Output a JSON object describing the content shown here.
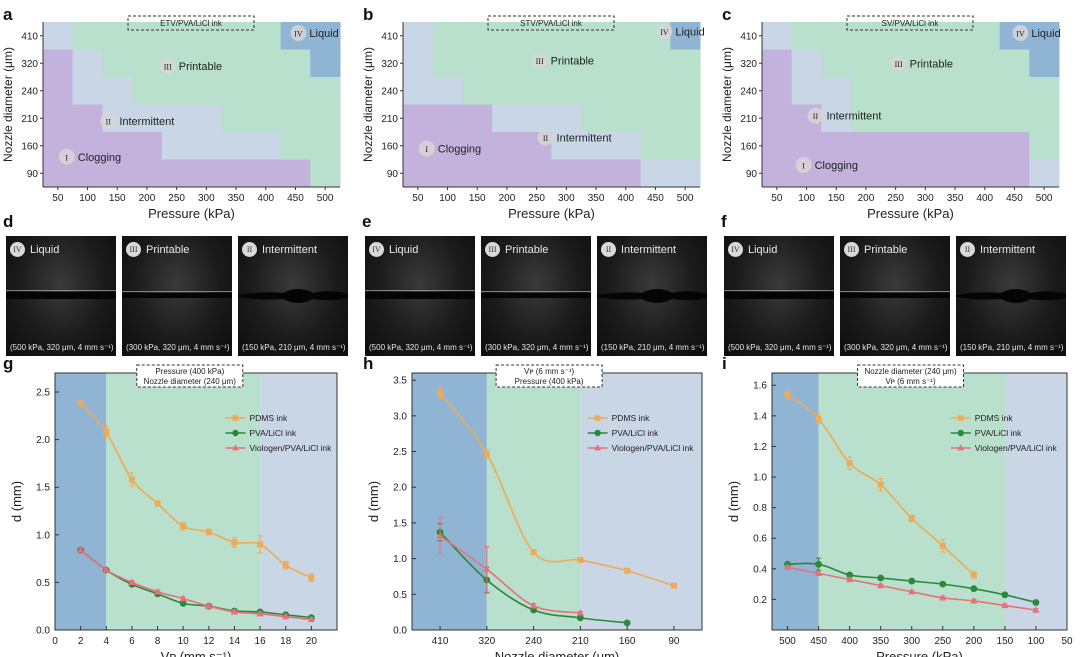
{
  "panel_letters": [
    "a",
    "b",
    "c",
    "d",
    "e",
    "f",
    "g",
    "h",
    "i"
  ],
  "region_labels": [
    "Liquid",
    "Printable",
    "Intermittent",
    "Clogging"
  ],
  "region_numerals": [
    "IV",
    "III",
    "II",
    "I"
  ],
  "photo_panels": [
    {
      "letter": "d",
      "items": [
        {
          "roman": "IV",
          "label": "Liquid",
          "cond": "(500 kPa, 320 μm, 4 mm s⁻¹)"
        },
        {
          "roman": "III",
          "label": "Printable",
          "cond": "(300 kPa, 320 μm, 4 mm s⁻¹)"
        },
        {
          "roman": "II",
          "label": "Intermittent",
          "cond": "(150 kPa, 210 μm, 4 mm s⁻¹)"
        }
      ]
    },
    {
      "letter": "e",
      "items": [
        {
          "roman": "IV",
          "label": "Liquid",
          "cond": "(500 kPa, 320 μm, 4 mm s⁻¹)"
        },
        {
          "roman": "III",
          "label": "Printable",
          "cond": "(300 kPa, 320 μm, 4 mm s⁻¹)"
        },
        {
          "roman": "II",
          "label": "Intermittent",
          "cond": "(150 kPa, 210 μm, 4 mm s⁻¹)"
        }
      ]
    },
    {
      "letter": "f",
      "items": [
        {
          "roman": "IV",
          "label": "Liquid",
          "cond": "(500 kPa, 320 μm, 4 mm s⁻¹)"
        },
        {
          "roman": "III",
          "label": "Printable",
          "cond": "(300 kPa, 320 μm, 4 mm s⁻¹)"
        },
        {
          "roman": "II",
          "label": "Intermittent",
          "cond": "(150 kPa, 210 μm, 4 mm s⁻¹)"
        }
      ]
    }
  ],
  "colors": {
    "liquid": "#90b4d4",
    "printable": "#b8e0cc",
    "intermittent": "#c9d6e6",
    "clogging": "#c3b3dc",
    "pdms": "#f0a955",
    "pva": "#2a8a3a",
    "viologen": "#e8707a"
  },
  "chart_data": [
    {
      "type": "heatmap",
      "panel": "a",
      "title": "ETV/PVA/LiCl ink",
      "xlabel": "Pressure (kPa)",
      "ylabel": "Nozzle diameter (μm)",
      "x": [
        50,
        100,
        150,
        200,
        250,
        300,
        350,
        400,
        450,
        500
      ],
      "y": [
        410,
        320,
        240,
        210,
        160,
        90
      ],
      "legend": [
        "Liquid",
        "Printable",
        "Intermittent",
        "Clogging"
      ],
      "grid": [
        [
          "Intermittent",
          "Printable",
          "Printable",
          "Printable",
          "Printable",
          "Printable",
          "Printable",
          "Printable",
          "Liquid",
          "Liquid"
        ],
        [
          "Clogging",
          "Intermittent",
          "Printable",
          "Printable",
          "Printable",
          "Printable",
          "Printable",
          "Printable",
          "Printable",
          "Liquid"
        ],
        [
          "Clogging",
          "Intermittent",
          "Intermittent",
          "Printable",
          "Printable",
          "Printable",
          "Printable",
          "Printable",
          "Printable",
          "Printable"
        ],
        [
          "Clogging",
          "Clogging",
          "Intermittent",
          "Intermittent",
          "Intermittent",
          "Intermittent",
          "Printable",
          "Printable",
          "Printable",
          "Printable"
        ],
        [
          "Clogging",
          "Clogging",
          "Clogging",
          "Clogging",
          "Intermittent",
          "Intermittent",
          "Intermittent",
          "Intermittent",
          "Printable",
          "Printable"
        ],
        [
          "Clogging",
          "Clogging",
          "Clogging",
          "Clogging",
          "Clogging",
          "Clogging",
          "Clogging",
          "Clogging",
          "Clogging",
          "Printable"
        ]
      ]
    },
    {
      "type": "heatmap",
      "panel": "b",
      "title": "STV/PVA/LiCl ink",
      "xlabel": "Pressure (kPa)",
      "ylabel": "Nozzle diameter (μm)",
      "x": [
        50,
        100,
        150,
        200,
        250,
        300,
        350,
        400,
        450,
        500
      ],
      "y": [
        410,
        320,
        240,
        210,
        160,
        90
      ],
      "legend": [
        "Liquid",
        "Printable",
        "Intermittent",
        "Clogging"
      ],
      "grid": [
        [
          "Intermittent",
          "Printable",
          "Printable",
          "Printable",
          "Printable",
          "Printable",
          "Printable",
          "Printable",
          "Printable",
          "Liquid"
        ],
        [
          "Intermittent",
          "Printable",
          "Printable",
          "Printable",
          "Printable",
          "Printable",
          "Printable",
          "Printable",
          "Printable",
          "Printable"
        ],
        [
          "Intermittent",
          "Intermittent",
          "Printable",
          "Printable",
          "Printable",
          "Printable",
          "Printable",
          "Printable",
          "Printable",
          "Printable"
        ],
        [
          "Clogging",
          "Clogging",
          "Clogging",
          "Intermittent",
          "Intermittent",
          "Intermittent",
          "Printable",
          "Printable",
          "Printable",
          "Printable"
        ],
        [
          "Clogging",
          "Clogging",
          "Clogging",
          "Clogging",
          "Clogging",
          "Intermittent",
          "Intermittent",
          "Intermittent",
          "Printable",
          "Printable"
        ],
        [
          "Clogging",
          "Clogging",
          "Clogging",
          "Clogging",
          "Clogging",
          "Clogging",
          "Clogging",
          "Clogging",
          "Intermittent",
          "Intermittent"
        ]
      ]
    },
    {
      "type": "heatmap",
      "panel": "c",
      "title": "SV/PVA/LiCl ink",
      "xlabel": "Pressure (kPa)",
      "ylabel": "Nozzle diameter (μm)",
      "x": [
        50,
        100,
        150,
        200,
        250,
        300,
        350,
        400,
        450,
        500
      ],
      "y": [
        410,
        320,
        240,
        210,
        160,
        90
      ],
      "legend": [
        "Liquid",
        "Printable",
        "Intermittent",
        "Clogging"
      ],
      "grid": [
        [
          "Intermittent",
          "Printable",
          "Printable",
          "Printable",
          "Printable",
          "Printable",
          "Printable",
          "Printable",
          "Liquid",
          "Liquid"
        ],
        [
          "Clogging",
          "Intermittent",
          "Printable",
          "Printable",
          "Printable",
          "Printable",
          "Printable",
          "Printable",
          "Printable",
          "Liquid"
        ],
        [
          "Clogging",
          "Intermittent",
          "Intermittent",
          "Printable",
          "Printable",
          "Printable",
          "Printable",
          "Printable",
          "Printable",
          "Printable"
        ],
        [
          "Clogging",
          "Clogging",
          "Intermittent",
          "Printable",
          "Printable",
          "Printable",
          "Printable",
          "Printable",
          "Printable",
          "Printable"
        ],
        [
          "Clogging",
          "Clogging",
          "Clogging",
          "Clogging",
          "Clogging",
          "Clogging",
          "Clogging",
          "Clogging",
          "Clogging",
          "Printable"
        ],
        [
          "Clogging",
          "Clogging",
          "Clogging",
          "Clogging",
          "Clogging",
          "Clogging",
          "Clogging",
          "Clogging",
          "Clogging",
          "Intermittent"
        ]
      ]
    },
    {
      "type": "line",
      "panel": "g",
      "title": "Pressure (400 kPa)",
      "subtitle": "Nozzle diameter (240 μm)",
      "xlabel": "Vᴘ (mm s⁻¹)",
      "ylabel": "d (mm)",
      "xlim": [
        0,
        22
      ],
      "ylim": [
        0,
        2.7
      ],
      "xticks": [
        0,
        2,
        4,
        6,
        8,
        10,
        12,
        14,
        16,
        18,
        20
      ],
      "yticks": [
        0,
        0.5,
        1.0,
        1.5,
        2.0,
        2.5
      ],
      "ytick_labels": [
        "0.0",
        "0.5",
        "1.0",
        "1.5",
        "2.0",
        "2.5"
      ],
      "bands": [
        {
          "from": 0,
          "to": 4,
          "zone": "Liquid"
        },
        {
          "from": 4,
          "to": 16,
          "zone": "Printable"
        },
        {
          "from": 16,
          "to": 22,
          "zone": "Intermittent"
        }
      ],
      "legend_position": "top-right",
      "x": [
        2,
        4,
        6,
        8,
        10,
        12,
        14,
        16,
        18,
        20
      ],
      "series": [
        {
          "name": "PDMS ink",
          "marker": "square",
          "values": [
            2.38,
            2.08,
            1.58,
            1.33,
            1.09,
            1.03,
            0.92,
            0.9,
            0.68,
            0.55
          ],
          "err": [
            0.02,
            0.06,
            0.07,
            0.02,
            0.04,
            0.03,
            0.05,
            0.09,
            0.04,
            0.04
          ]
        },
        {
          "name": "PVA/LiCl ink",
          "marker": "circle",
          "values": [
            0.84,
            0.63,
            0.48,
            0.38,
            0.28,
            0.25,
            0.2,
            0.19,
            0.16,
            0.13
          ],
          "err": [
            0.02,
            0.02,
            0.02,
            0.02,
            0.02,
            0.02,
            0.02,
            0.02,
            0.02,
            0.02
          ]
        },
        {
          "name": "Viologen/PVA/LiCl ink",
          "marker": "triangle",
          "values": [
            0.84,
            0.63,
            0.5,
            0.4,
            0.33,
            0.25,
            0.19,
            0.17,
            0.14,
            0.11
          ],
          "err": [
            0.02,
            0.02,
            0.02,
            0.02,
            0.02,
            0.02,
            0.02,
            0.02,
            0.02,
            0.02
          ]
        }
      ]
    },
    {
      "type": "line",
      "panel": "h",
      "title": "Vᴘ (6 mm s⁻¹)",
      "subtitle": "Pressure (400 kPa)",
      "xlabel": "Nozzle diameter (μm)",
      "ylabel": "d (mm)",
      "categories": [
        "410",
        "320",
        "240",
        "210",
        "160",
        "90"
      ],
      "ylim": [
        0,
        3.6
      ],
      "yticks": [
        0,
        0.5,
        1.0,
        1.5,
        2.0,
        2.5,
        3.0,
        3.5
      ],
      "ytick_labels": [
        "0.0",
        "0.5",
        "1.0",
        "1.5",
        "2.0",
        "2.5",
        "3.0",
        "3.5"
      ],
      "bands": [
        {
          "from": -0.6,
          "to": 1,
          "zone": "Liquid"
        },
        {
          "from": 1,
          "to": 3,
          "zone": "Printable"
        },
        {
          "from": 3,
          "to": 5.6,
          "zone": "Intermittent"
        }
      ],
      "legend_position": "top-right",
      "series": [
        {
          "name": "PDMS ink",
          "marker": "square",
          "values": [
            3.32,
            2.47,
            1.09,
            0.98,
            0.83,
            0.62
          ],
          "err": [
            0.08,
            0.06,
            0.03,
            0.03,
            0.03,
            0.03
          ]
        },
        {
          "name": "PVA/LiCl ink",
          "marker": "circle",
          "values": [
            1.37,
            0.7,
            0.28,
            0.17,
            0.1,
            null
          ],
          "err": [
            0.12,
            0.18,
            0.03,
            0.02,
            0.02,
            null
          ]
        },
        {
          "name": "Viologen/PVA/LiCl ink",
          "marker": "triangle",
          "values": [
            1.32,
            0.85,
            0.34,
            0.24,
            null,
            null
          ],
          "err": [
            0.25,
            0.32,
            0.03,
            0.02,
            null,
            null
          ]
        }
      ]
    },
    {
      "type": "line",
      "panel": "i",
      "title": "Nozzle diameter (240 μm)",
      "subtitle": "Vᴘ (6 mm s⁻¹)",
      "xlabel": "Pressure (kPa)",
      "ylabel": "d (mm)",
      "xlim": [
        525,
        50
      ],
      "ylim": [
        0,
        1.68
      ],
      "xticks": [
        500,
        450,
        400,
        350,
        300,
        250,
        200,
        150,
        100,
        50
      ],
      "yticks": [
        0.2,
        0.4,
        0.6,
        0.8,
        1.0,
        1.2,
        1.4,
        1.6
      ],
      "ytick_labels": [
        "0.2",
        "0.4",
        "0.6",
        "0.8",
        "1.0",
        "1.2",
        "1.4",
        "1.6"
      ],
      "bands": [
        {
          "from": 525,
          "to": 450,
          "zone": "Liquid"
        },
        {
          "from": 450,
          "to": 150,
          "zone": "Printable"
        },
        {
          "from": 150,
          "to": 50,
          "zone": "Intermittent"
        }
      ],
      "legend_position": "top-right",
      "x": [
        500,
        450,
        400,
        350,
        300,
        250,
        200,
        150,
        100
      ],
      "series": [
        {
          "name": "PDMS ink",
          "marker": "square",
          "values": [
            1.54,
            1.38,
            1.09,
            0.95,
            0.73,
            0.55,
            0.36,
            null,
            null
          ],
          "err": [
            0.03,
            0.03,
            0.04,
            0.04,
            0.02,
            0.04,
            0.02,
            null,
            null
          ]
        },
        {
          "name": "PVA/LiCl ink",
          "marker": "circle",
          "values": [
            0.43,
            0.43,
            0.36,
            0.34,
            0.32,
            0.3,
            0.27,
            0.23,
            0.18
          ],
          "err": [
            0.01,
            0.04,
            0.01,
            0.01,
            0.01,
            0.01,
            0.01,
            0.01,
            0.01
          ]
        },
        {
          "name": "Viologen/PVA/LiCl ink",
          "marker": "triangle",
          "values": [
            0.41,
            0.37,
            0.33,
            0.29,
            0.25,
            0.21,
            0.19,
            0.16,
            0.13
          ],
          "err": [
            0.01,
            0.01,
            0.01,
            0.01,
            0.01,
            0.01,
            0.01,
            0.01,
            0.01
          ]
        }
      ]
    }
  ]
}
